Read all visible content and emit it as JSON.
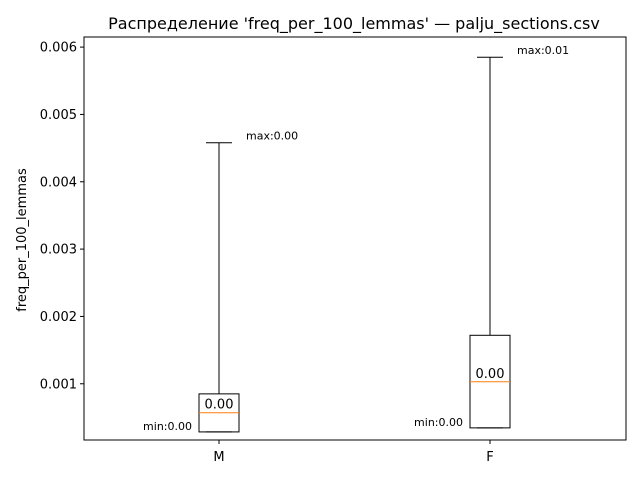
{
  "chart_data": {
    "type": "box",
    "title": "Распределение 'freq_per_100_lemmas' — palju_sections.csv",
    "xlabel": "",
    "ylabel": "freq_per_100_lemmas",
    "ylim": [
      0.000165,
      0.00615
    ],
    "yticks": [
      0.001,
      0.002,
      0.003,
      0.004,
      0.005,
      0.006
    ],
    "ytick_labels": [
      "0.001",
      "0.002",
      "0.003",
      "0.004",
      "0.005",
      "0.006"
    ],
    "grid": false,
    "categories": [
      "M",
      "F"
    ],
    "series": [
      {
        "name": "M",
        "whisker_low": 0.000285,
        "q1": 0.000285,
        "median": 0.00057,
        "q3": 0.00085,
        "whisker_high": 0.00458,
        "median_label": "0.00",
        "min_label": "min:0.00",
        "max_label": "max:0.00"
      },
      {
        "name": "F",
        "whisker_low": 0.000345,
        "q1": 0.000345,
        "median": 0.00103,
        "q3": 0.00172,
        "whisker_high": 0.00585,
        "median_label": "0.00",
        "min_label": "min:0.00",
        "max_label": "max:0.01"
      }
    ],
    "colors": {
      "box": "#000000",
      "median": "#ff7f0e",
      "whisker": "#000000",
      "axes": "#000000",
      "background": "#ffffff"
    }
  }
}
